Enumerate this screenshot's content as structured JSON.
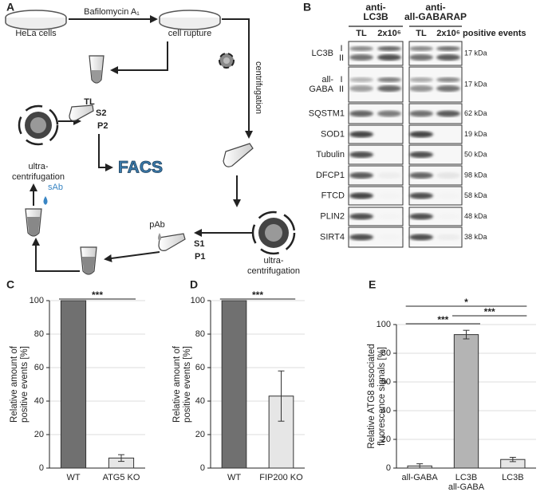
{
  "panels": [
    "A",
    "B",
    "C",
    "D",
    "E"
  ],
  "diagram": {
    "hela": "HeLa cells",
    "treatment": "Bafilomycin A₁",
    "rupture": "cell rupture",
    "tl": "TL",
    "centrifugation": "centrifugation",
    "ultra1": [
      "ultra-",
      "centrifugation"
    ],
    "s1": "S1",
    "p1": "P1",
    "pab": "pAb",
    "sab": "sAb",
    "ultra2": [
      "ultra-",
      "centrifugation"
    ],
    "s2": "S2",
    "p2": "P2",
    "facs": "FACS"
  },
  "blot": {
    "groups": [
      "anti-\nLC3B",
      "anti-\nall-GABARAP"
    ],
    "lanes": [
      "TL",
      "2x10⁶",
      "TL",
      "2x10⁶"
    ],
    "lane_note": "positive events",
    "rows": [
      {
        "name": "LC3B",
        "forms": [
          "I",
          "II"
        ],
        "size": "17 kDa"
      },
      {
        "name": "all-\nGABA",
        "forms": [
          "I",
          "II"
        ],
        "size": "17 kDa"
      },
      {
        "name": "SQSTM1",
        "size": "62 kDa"
      },
      {
        "name": "SOD1",
        "size": "19 kDa"
      },
      {
        "name": "Tubulin",
        "size": "50 kDa"
      },
      {
        "name": "DFCP1",
        "size": "98 kDa"
      },
      {
        "name": "FTCD",
        "size": "58 kDa"
      },
      {
        "name": "PLIN2",
        "size": "48 kDa"
      },
      {
        "name": "SIRT4",
        "size": "38 kDa"
      }
    ]
  },
  "chart_data": [
    {
      "type": "bar",
      "ylabel": [
        "Relative amount of",
        "positive events [%]"
      ],
      "categories": [
        "WT",
        "ATG5 KO"
      ],
      "values": [
        100,
        6
      ],
      "errors": [
        0,
        2
      ],
      "colors": [
        "#707070",
        "#e6e6e6"
      ],
      "ylim": [
        0,
        100
      ],
      "yticks": [
        0,
        20,
        40,
        60,
        80,
        100
      ],
      "grid": true,
      "significance": [
        {
          "from": 0,
          "to": 1,
          "label": "***"
        }
      ]
    },
    {
      "type": "bar",
      "ylabel": [
        "Relative amount of",
        "positive events [%]"
      ],
      "categories": [
        "WT",
        "FIP200 KO"
      ],
      "values": [
        100,
        43
      ],
      "errors": [
        0,
        15
      ],
      "colors": [
        "#707070",
        "#e6e6e6"
      ],
      "ylim": [
        0,
        100
      ],
      "yticks": [
        0,
        20,
        40,
        60,
        80,
        100
      ],
      "grid": true,
      "significance": [
        {
          "from": 0,
          "to": 1,
          "label": "***"
        }
      ]
    },
    {
      "type": "bar",
      "ylabel": [
        "Relative ATG8 associated",
        "fluorescence signals [%]"
      ],
      "categories": [
        "all-GABA",
        "LC3B all-GABA",
        "LC3B"
      ],
      "values": [
        1.5,
        93,
        6
      ],
      "errors": [
        1.5,
        3,
        1.5
      ],
      "colors": [
        "#e6e6e6",
        "#b4b4b4",
        "#e6e6e6"
      ],
      "ylim": [
        0,
        100
      ],
      "yticks": [
        0,
        20,
        40,
        60,
        80,
        100
      ],
      "grid": true,
      "significance": [
        {
          "from": 0,
          "to": 2,
          "label": "*"
        },
        {
          "from": 0,
          "to": 1,
          "label": "***"
        },
        {
          "from": 1,
          "to": 2,
          "label": "***"
        }
      ]
    }
  ]
}
